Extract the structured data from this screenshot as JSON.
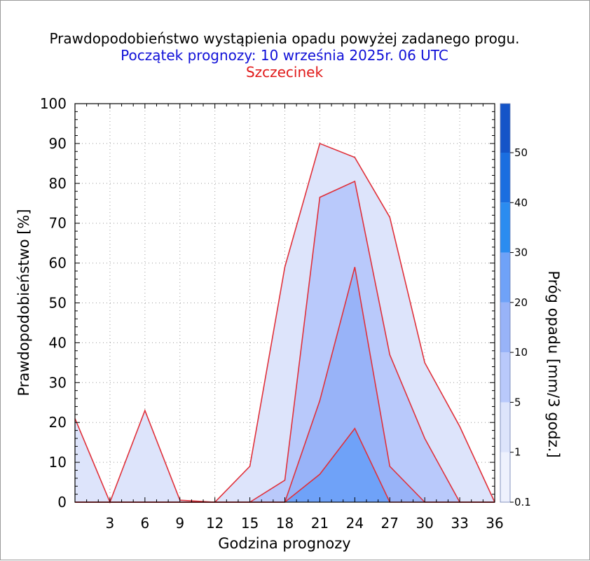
{
  "title": "Prawdopodobieństwo wystąpienia opadu powyżej zadanego progu.",
  "subtitle": "Początek prognozy: 10 września 2025r. 06 UTC",
  "location": "Szczecinek",
  "colors": {
    "title": "#000000",
    "subtitle": "#1010d8",
    "location": "#e01818",
    "line": "#e0303a",
    "bands": [
      "#dde4fb",
      "#b9c9fb",
      "#98b3f8",
      "#6fa2f8"
    ]
  },
  "chart_data": {
    "type": "area",
    "xlabel": "Godzina prognozy",
    "ylabel": "Prawdopodobieństwo [%]",
    "xlim": [
      0,
      36
    ],
    "ylim": [
      0,
      100
    ],
    "xticks": [
      3,
      6,
      9,
      12,
      15,
      18,
      21,
      24,
      27,
      30,
      33,
      36
    ],
    "yticks": [
      0,
      10,
      20,
      30,
      40,
      50,
      60,
      70,
      80,
      90,
      100
    ],
    "grid": true,
    "x": [
      0,
      3,
      6,
      9,
      12,
      15,
      18,
      21,
      24,
      27,
      30,
      33,
      36
    ],
    "series": [
      {
        "name": "0.1",
        "values": [
          21,
          0,
          23,
          0.5,
          0,
          9,
          59,
          90,
          86.5,
          71.5,
          35,
          19,
          0
        ]
      },
      {
        "name": "1",
        "values": [
          0,
          0,
          0,
          0,
          0,
          0,
          5.5,
          76.5,
          80.5,
          37,
          16,
          0,
          0
        ]
      },
      {
        "name": "5",
        "values": [
          0,
          0,
          0,
          0,
          0,
          0,
          0,
          25.5,
          59,
          9,
          0,
          0,
          0
        ]
      },
      {
        "name": "10",
        "values": [
          0,
          0,
          0,
          0,
          0,
          0,
          0,
          7,
          18.5,
          0,
          0,
          0,
          0
        ]
      }
    ],
    "colorbar": {
      "label": "Próg opadu [mm/3 godz.]",
      "ticks": [
        "0.1",
        "1",
        "5",
        "10",
        "20",
        "30",
        "40",
        "50"
      ],
      "colors": [
        "#eef1fd",
        "#dde4fb",
        "#b9c9fb",
        "#98b3f8",
        "#6fa2f8",
        "#2b8cf0",
        "#1a6ee0",
        "#1454c8",
        "#0f3ea8"
      ]
    }
  }
}
